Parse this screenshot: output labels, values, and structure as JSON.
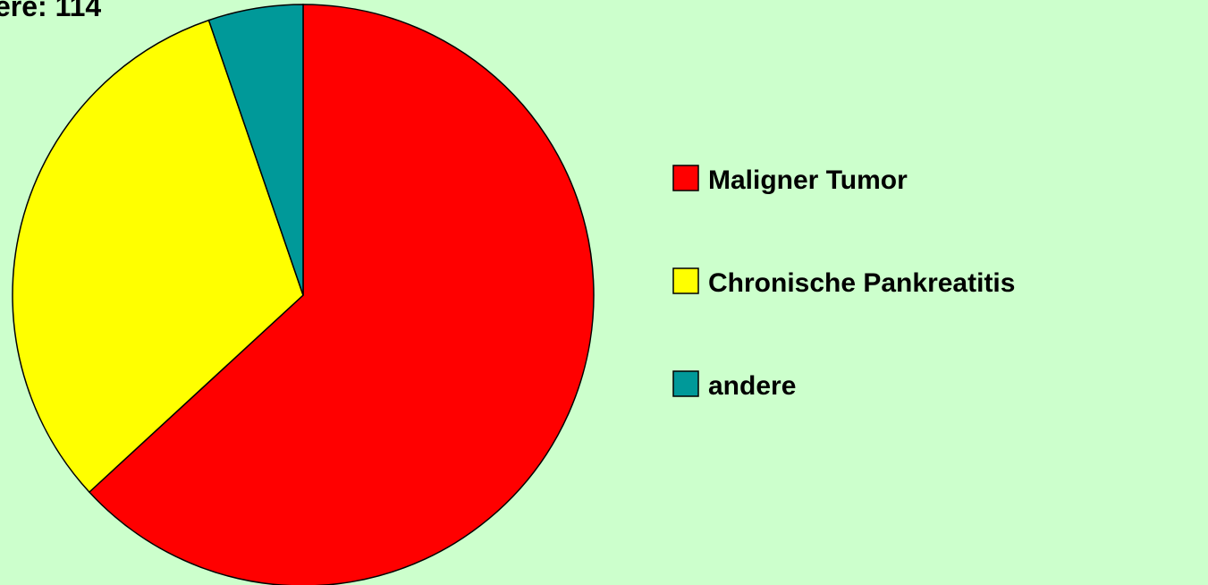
{
  "chart_data": {
    "type": "pie",
    "title": "ere: 114",
    "categories": [
      "Maligner Tumor",
      "Chronische Pankreatitis",
      "andere"
    ],
    "values": [
      72,
      36,
      6
    ],
    "colors": [
      "#ff0000",
      "#ffff00",
      "#009999"
    ],
    "legend": "right"
  }
}
